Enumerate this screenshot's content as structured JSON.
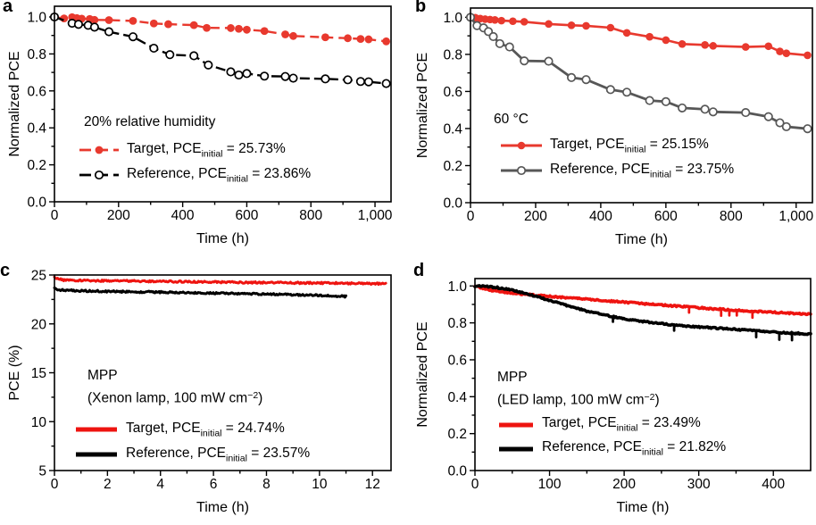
{
  "figure_name": "device-stability-figure",
  "chart_data": [
    {
      "panel_label": "a",
      "type": "line",
      "xlabel": "Time (h)",
      "ylabel": "Normalized PCE",
      "xlim": [
        0,
        1050
      ],
      "ylim": [
        0,
        1.058
      ],
      "xticks": {
        "values": [
          0,
          200,
          400,
          600,
          800,
          1000
        ],
        "labels": [
          "0",
          "200",
          "400",
          "600",
          "800",
          "1,000"
        ],
        "minor": [
          100,
          300,
          500,
          700,
          900
        ]
      },
      "yticks": {
        "values": [
          0,
          0.2,
          0.4,
          0.6,
          0.8,
          1.0
        ],
        "labels": [
          "0.0",
          "0.2",
          "0.4",
          "0.6",
          "0.8",
          "1.0"
        ],
        "minor": [
          0.1,
          0.3,
          0.5,
          0.7,
          0.9
        ]
      },
      "annotation": [
        [
          {
            "t": "20% relative humidity"
          }
        ]
      ],
      "series": [
        {
          "name": "Target",
          "color": "#e8392e",
          "line_width": 2.4,
          "dash": "10 6",
          "marker": "circle-filled",
          "marker_r": 4.4,
          "legend_lw": 2.8,
          "x": [
            0,
            30,
            55,
            70,
            85,
            110,
            125,
            170,
            245,
            310,
            355,
            435,
            475,
            550,
            575,
            600,
            655,
            720,
            745,
            845,
            915,
            955,
            980,
            1035
          ],
          "y": [
            1.0,
            0.992,
            0.999,
            0.994,
            0.991,
            0.989,
            0.984,
            0.983,
            0.979,
            0.965,
            0.961,
            0.956,
            0.941,
            0.94,
            0.936,
            0.931,
            0.924,
            0.906,
            0.897,
            0.89,
            0.885,
            0.881,
            0.879,
            0.868
          ]
        },
        {
          "name": "Reference",
          "color": "#000000",
          "line_width": 2.4,
          "dash": "11 5",
          "marker": "circle-open",
          "marker_r": 4.2,
          "legend_lw": 2.8,
          "x": [
            0,
            55,
            75,
            105,
            125,
            170,
            245,
            310,
            360,
            435,
            480,
            550,
            575,
            600,
            655,
            720,
            745,
            845,
            915,
            955,
            980,
            1035
          ],
          "y": [
            1.0,
            0.966,
            0.96,
            0.955,
            0.945,
            0.92,
            0.893,
            0.831,
            0.796,
            0.79,
            0.74,
            0.703,
            0.686,
            0.694,
            0.68,
            0.678,
            0.669,
            0.665,
            0.66,
            0.651,
            0.649,
            0.64
          ]
        }
      ],
      "legend": [
        {
          "series": 0,
          "parts": [
            {
              "t": "Target, PCE"
            },
            {
              "t": "initial",
              "sub": true
            },
            {
              "t": " = 25.73%"
            }
          ]
        },
        {
          "series": 1,
          "parts": [
            {
              "t": "Reference, PCE"
            },
            {
              "t": "initial",
              "sub": true
            },
            {
              "t": " = 23.86%"
            }
          ]
        }
      ]
    },
    {
      "panel_label": "b",
      "type": "line",
      "xlabel": "Time (h)",
      "ylabel": "Normalized PCE",
      "xlim": [
        0,
        1050
      ],
      "ylim": [
        0,
        1.05
      ],
      "xticks": {
        "values": [
          0,
          200,
          400,
          600,
          800,
          1000
        ],
        "labels": [
          "0",
          "200",
          "400",
          "600",
          "800",
          "1,000"
        ],
        "minor": [
          100,
          300,
          500,
          700,
          900
        ]
      },
      "yticks": {
        "values": [
          0,
          0.2,
          0.4,
          0.6,
          0.8,
          1.0
        ],
        "labels": [
          "0.0",
          "0.2",
          "0.4",
          "0.6",
          "0.8",
          "1.0"
        ],
        "minor": [
          0.1,
          0.3,
          0.5,
          0.7,
          0.9
        ]
      },
      "annotation": [
        [
          {
            "t": "60 °C"
          }
        ]
      ],
      "series": [
        {
          "name": "Target",
          "color": "#e8392e",
          "line_width": 2.6,
          "dash": null,
          "marker": "circle-filled",
          "marker_r": 4.3,
          "legend_lw": 3,
          "x": [
            0,
            15,
            30,
            45,
            60,
            75,
            95,
            130,
            165,
            240,
            310,
            355,
            430,
            480,
            550,
            600,
            650,
            720,
            745,
            845,
            915,
            950,
            970,
            1035
          ],
          "y": [
            1.0,
            0.998,
            0.993,
            0.99,
            0.988,
            0.986,
            0.982,
            0.979,
            0.976,
            0.964,
            0.957,
            0.954,
            0.944,
            0.916,
            0.895,
            0.877,
            0.856,
            0.851,
            0.846,
            0.84,
            0.844,
            0.816,
            0.806,
            0.795
          ]
        },
        {
          "name": "Reference",
          "color": "#575757",
          "line_width": 2.8,
          "dash": null,
          "marker": "circle-open",
          "marker_r": 4.2,
          "legend_lw": 3,
          "x": [
            0,
            20,
            40,
            55,
            70,
            90,
            120,
            165,
            240,
            310,
            355,
            430,
            480,
            550,
            600,
            650,
            720,
            745,
            845,
            915,
            950,
            970,
            1035
          ],
          "y": [
            1.0,
            0.955,
            0.943,
            0.923,
            0.896,
            0.858,
            0.84,
            0.765,
            0.763,
            0.675,
            0.664,
            0.61,
            0.596,
            0.551,
            0.545,
            0.511,
            0.504,
            0.49,
            0.486,
            0.464,
            0.431,
            0.41,
            0.399
          ]
        }
      ],
      "legend": [
        {
          "series": 0,
          "parts": [
            {
              "t": "Target, PCE"
            },
            {
              "t": "initial",
              "sub": true
            },
            {
              "t": " = 25.15%"
            }
          ]
        },
        {
          "series": 1,
          "parts": [
            {
              "t": "Reference, PCE"
            },
            {
              "t": "initial",
              "sub": true
            },
            {
              "t": " = 23.75%"
            }
          ]
        }
      ]
    },
    {
      "panel_label": "c",
      "type": "line",
      "xlabel": "Time (h)",
      "ylabel": "PCE (%)",
      "xlim": [
        0,
        12.7
      ],
      "ylim": [
        5,
        25
      ],
      "xticks": {
        "values": [
          0,
          2,
          4,
          6,
          8,
          10,
          12
        ],
        "labels": [
          "0",
          "2",
          "4",
          "6",
          "8",
          "10",
          "12"
        ],
        "minor": [
          1,
          3,
          5,
          7,
          9,
          11
        ]
      },
      "yticks": {
        "values": [
          5,
          10,
          15,
          20,
          25
        ],
        "labels": [
          "5",
          "10",
          "15",
          "20",
          "25"
        ],
        "minor": [
          7.5,
          12.5,
          17.5,
          22.5
        ]
      },
      "annotation": [
        [
          {
            "t": "MPP"
          }
        ],
        [
          {
            "t": "(Xenon lamp, 100 mW cm"
          },
          {
            "t": "−2",
            "sup": true
          },
          {
            "t": ")"
          }
        ]
      ],
      "series": [
        {
          "name": "Target",
          "color": "#ee1410",
          "line_width": 3,
          "dash": null,
          "marker": null,
          "legend_lw": 5,
          "smooth": {
            "samples": 320,
            "amp": 0.09
          },
          "x": [
            0,
            0.3,
            1,
            2,
            3,
            4,
            5,
            6,
            7,
            8,
            9,
            10,
            11,
            12,
            12.5
          ],
          "y": [
            24.75,
            24.5,
            24.45,
            24.4,
            24.38,
            24.35,
            24.3,
            24.28,
            24.25,
            24.22,
            24.2,
            24.18,
            24.15,
            24.12,
            24.1
          ]
        },
        {
          "name": "Reference",
          "color": "#000000",
          "line_width": 3,
          "dash": null,
          "marker": null,
          "legend_lw": 5,
          "smooth": {
            "samples": 290,
            "amp": 0.09
          },
          "x": [
            0,
            0.3,
            1,
            2,
            3,
            4,
            5,
            6,
            7,
            8,
            9,
            10,
            10.5,
            11
          ],
          "y": [
            23.6,
            23.45,
            23.4,
            23.32,
            23.28,
            23.25,
            23.2,
            23.15,
            23.1,
            23.05,
            22.98,
            22.92,
            22.88,
            22.8
          ]
        }
      ],
      "legend": [
        {
          "series": 0,
          "parts": [
            {
              "t": "Target, PCE"
            },
            {
              "t": "initial",
              "sub": true
            },
            {
              "t": " = 24.74%"
            }
          ]
        },
        {
          "series": 1,
          "parts": [
            {
              "t": "Reference, PCE"
            },
            {
              "t": "initial",
              "sub": true
            },
            {
              "t": " = 23.57%"
            }
          ]
        }
      ]
    },
    {
      "panel_label": "d",
      "type": "line",
      "xlabel": "Time (h)",
      "ylabel": "Normalized PCE",
      "xlim": [
        0,
        450
      ],
      "ylim": [
        0,
        1.04
      ],
      "xticks": {
        "values": [
          0,
          100,
          200,
          300,
          400
        ],
        "labels": [
          "0",
          "100",
          "200",
          "300",
          "400"
        ],
        "minor": [
          50,
          150,
          250,
          350
        ]
      },
      "yticks": {
        "values": [
          0,
          0.2,
          0.4,
          0.6,
          0.8,
          1.0
        ],
        "labels": [
          "0.0",
          "0.2",
          "0.4",
          "0.6",
          "0.8",
          "1.0"
        ],
        "minor": [
          0.1,
          0.3,
          0.5,
          0.7,
          0.9
        ]
      },
      "annotation": [
        [
          {
            "t": "MPP"
          }
        ],
        [
          {
            "t": "(LED lamp, 100 mW cm"
          },
          {
            "t": "−2",
            "sup": true
          },
          {
            "t": ")"
          }
        ]
      ],
      "series": [
        {
          "name": "Target",
          "color": "#ee1410",
          "line_width": 3.6,
          "dash": null,
          "marker": null,
          "legend_lw": 5,
          "smooth": {
            "samples": 300,
            "amp": 0.004
          },
          "spikes": [
            {
              "x": 287,
              "d": 0.03
            },
            {
              "x": 330,
              "d": 0.035
            },
            {
              "x": 341,
              "d": 0.03
            },
            {
              "x": 351,
              "d": 0.028
            },
            {
              "x": 372,
              "d": 0.035
            }
          ],
          "x": [
            0,
            20,
            40,
            60,
            80,
            100,
            130,
            160,
            200,
            240,
            280,
            320,
            360,
            400,
            430,
            450
          ],
          "y": [
            1.0,
            0.978,
            0.966,
            0.957,
            0.95,
            0.944,
            0.934,
            0.925,
            0.912,
            0.9,
            0.888,
            0.876,
            0.866,
            0.857,
            0.851,
            0.848
          ]
        },
        {
          "name": "Reference",
          "color": "#000000",
          "line_width": 3.6,
          "dash": null,
          "marker": null,
          "legend_lw": 5,
          "smooth": {
            "samples": 300,
            "amp": 0.004
          },
          "spikes": [
            {
              "x": 185,
              "d": 0.028
            },
            {
              "x": 267,
              "d": 0.03
            },
            {
              "x": 377,
              "d": 0.035
            },
            {
              "x": 408,
              "d": 0.04
            },
            {
              "x": 425,
              "d": 0.038
            }
          ],
          "x": [
            0,
            15,
            30,
            45,
            60,
            75,
            90,
            105,
            120,
            140,
            160,
            180,
            200,
            220,
            240,
            270,
            300,
            330,
            360,
            390,
            420,
            450
          ],
          "y": [
            1.0,
            0.997,
            0.991,
            0.982,
            0.968,
            0.952,
            0.934,
            0.915,
            0.897,
            0.874,
            0.855,
            0.838,
            0.822,
            0.81,
            0.8,
            0.787,
            0.778,
            0.77,
            0.762,
            0.754,
            0.745,
            0.74
          ]
        }
      ],
      "legend": [
        {
          "series": 0,
          "parts": [
            {
              "t": "Target, PCE"
            },
            {
              "t": "initial",
              "sub": true
            },
            {
              "t": " = 23.49%"
            }
          ]
        },
        {
          "series": 1,
          "parts": [
            {
              "t": "Reference, PCE"
            },
            {
              "t": "initial",
              "sub": true
            },
            {
              "t": " = 21.82%"
            }
          ]
        }
      ]
    }
  ]
}
